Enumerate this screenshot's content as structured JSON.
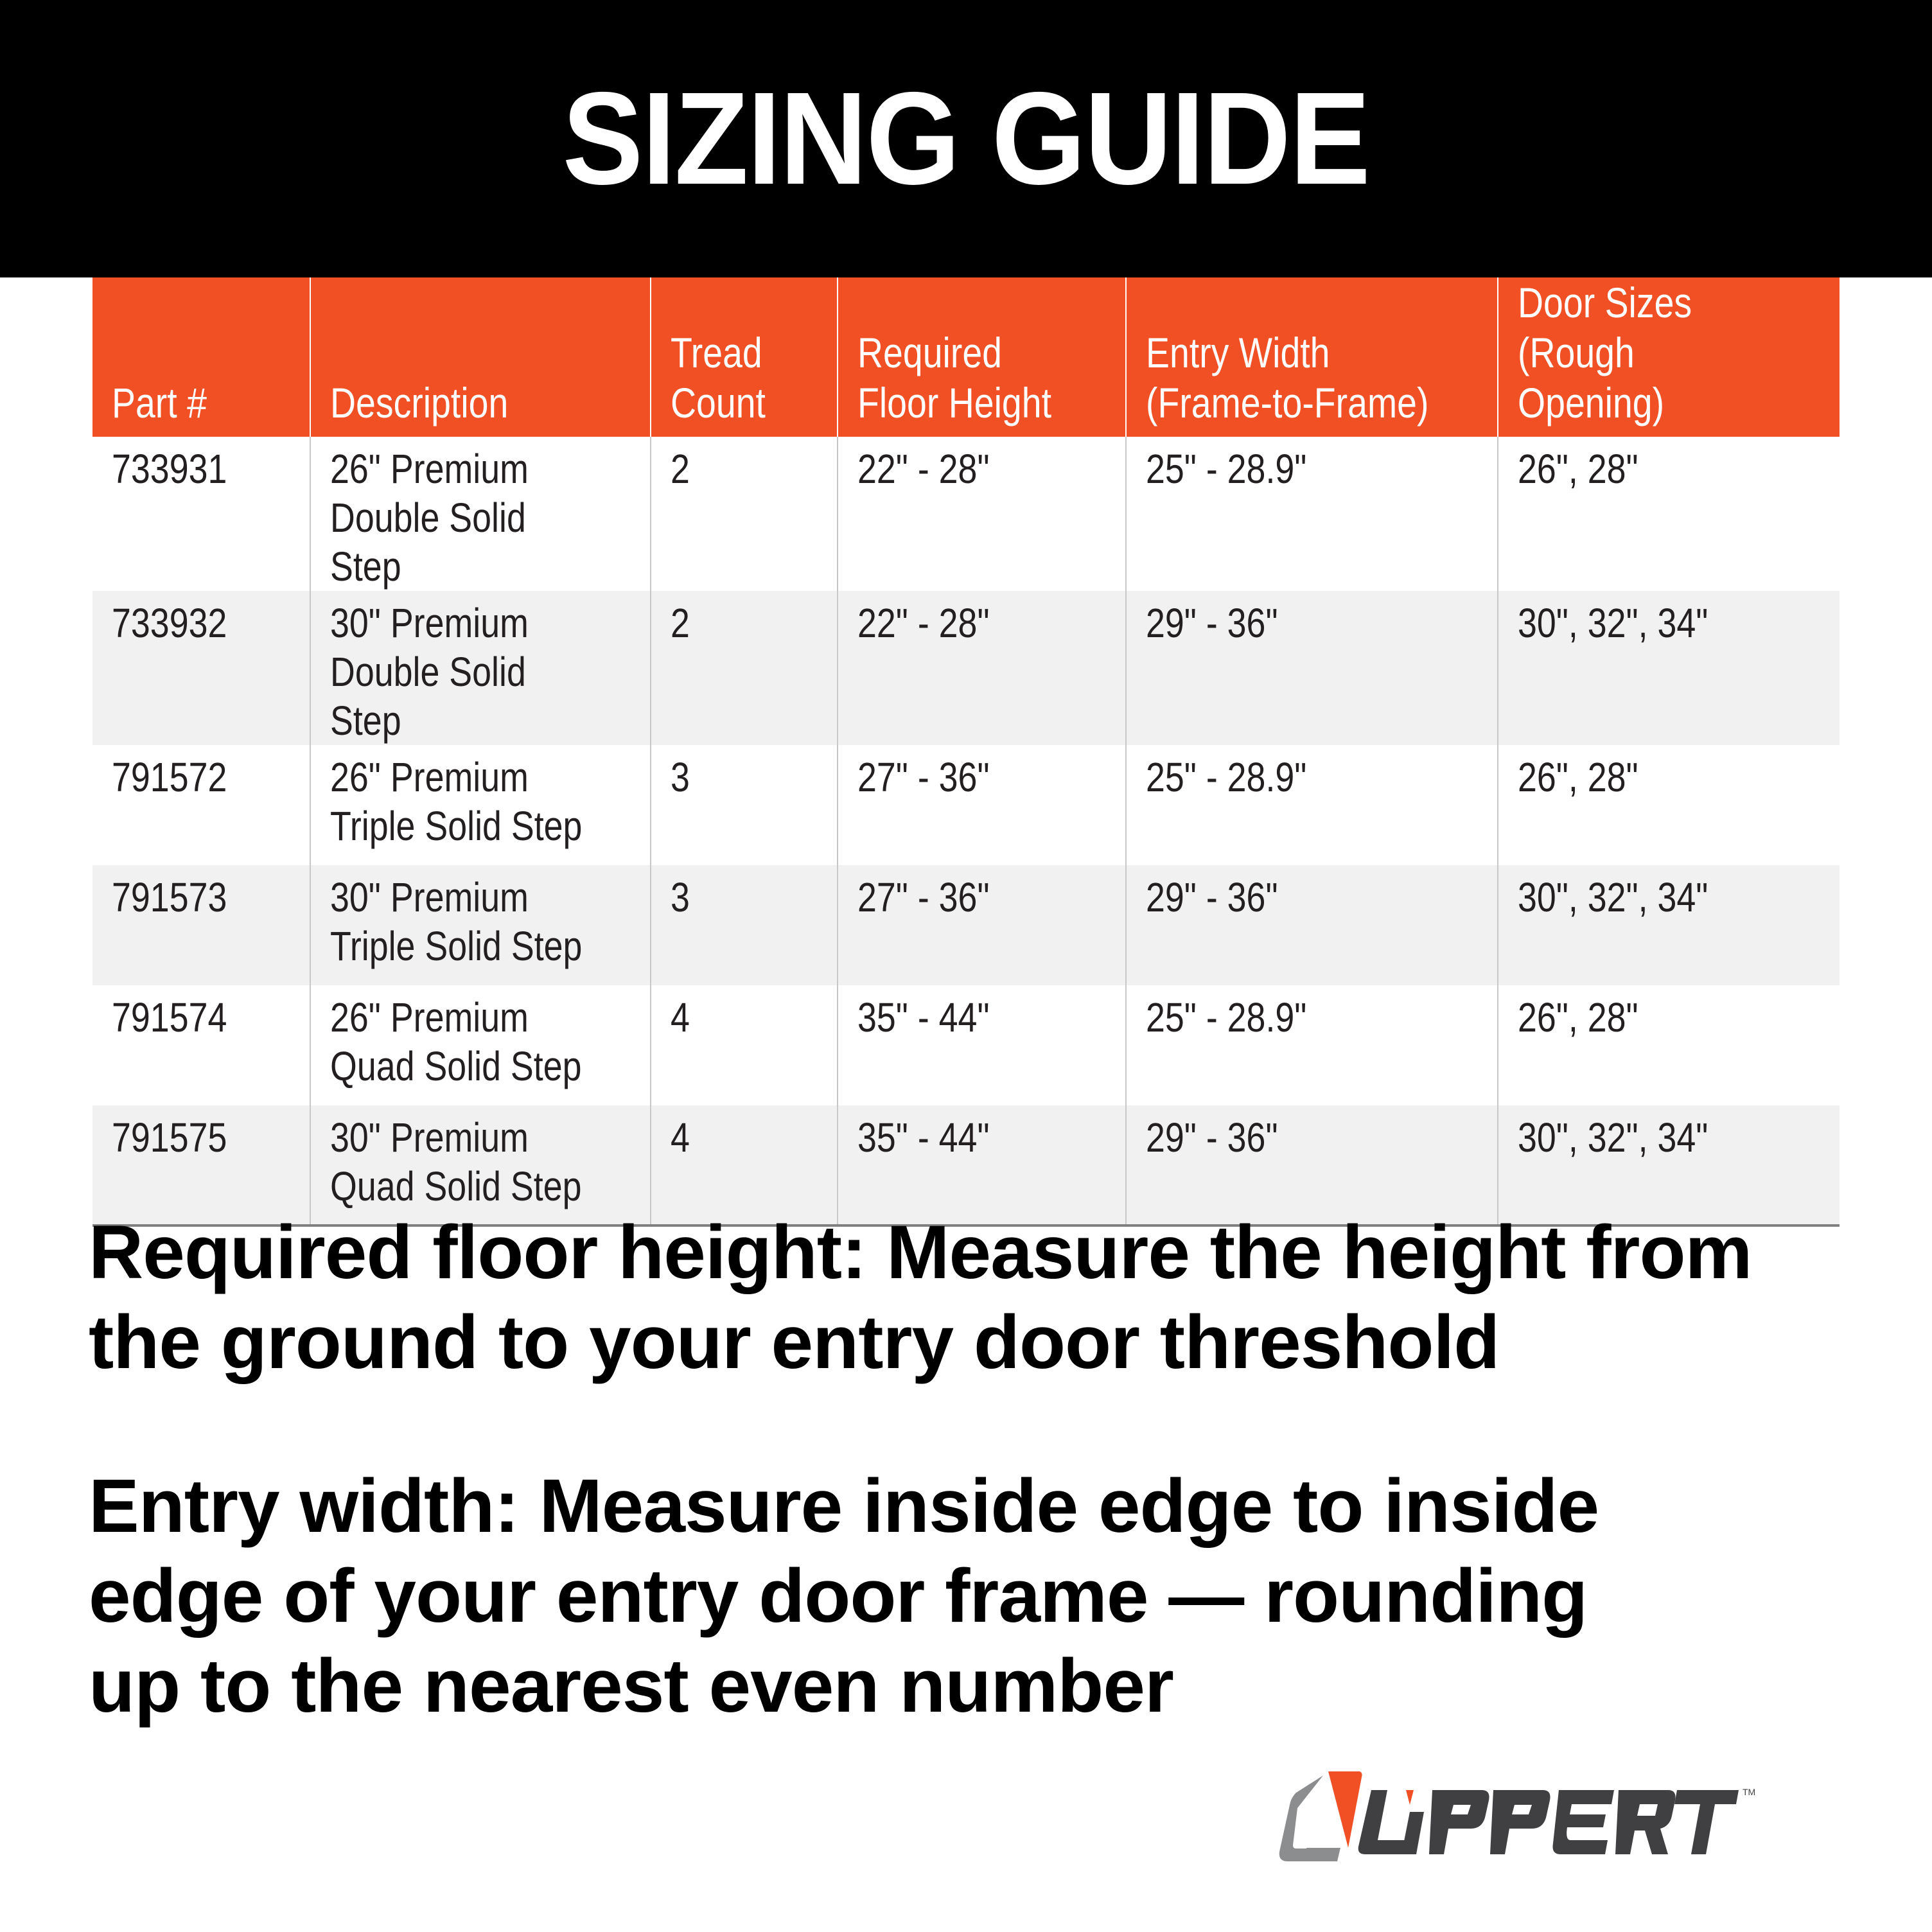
{
  "header": {
    "title": "SIZING GUIDE"
  },
  "table": {
    "columns": [
      "Part #",
      "Description",
      "Tread\nCount",
      "Required\nFloor Height",
      "Entry Width\n(Frame-to-Frame)",
      "Door Sizes\n(Rough Opening)"
    ],
    "rows": [
      [
        "733931",
        "26\" Premium\nDouble Solid Step",
        "2",
        "22\" - 28\"",
        "25\" - 28.9\"",
        "26\", 28\""
      ],
      [
        "733932",
        "30\" Premium\nDouble Solid Step",
        "2",
        "22\" - 28\"",
        "29\" - 36\"",
        "30\", 32\", 34\""
      ],
      [
        "791572",
        "26\" Premium\nTriple Solid Step",
        "3",
        "27\" - 36\"",
        "25\" - 28.9\"",
        "26\", 28\""
      ],
      [
        "791573",
        "30\" Premium\nTriple Solid Step",
        "3",
        "27\" - 36\"",
        "29\" - 36\"",
        "30\", 32\", 34\""
      ],
      [
        "791574",
        "26\" Premium\nQuad Solid Step",
        "4",
        "35\" - 44\"",
        "25\" - 28.9\"",
        "26\", 28\""
      ],
      [
        "791575",
        "30\" Premium\nQuad Solid Step",
        "4",
        "35\" - 44\"",
        "29\" - 36\"",
        "30\", 32\", 34\""
      ]
    ]
  },
  "notes": [
    "Required floor height: Measure the height from the ground to your entry door threshold",
    "Entry width: Measure inside edge to inside edge of your entry door frame — rounding up to the nearest even number"
  ],
  "logo": {
    "text": "LIPPERT",
    "trademark": "TM"
  },
  "colors": {
    "accent": "#f15025",
    "header_bg": "#000000",
    "logo_gray": "#8c8d8f",
    "logo_dark": "#404042"
  }
}
